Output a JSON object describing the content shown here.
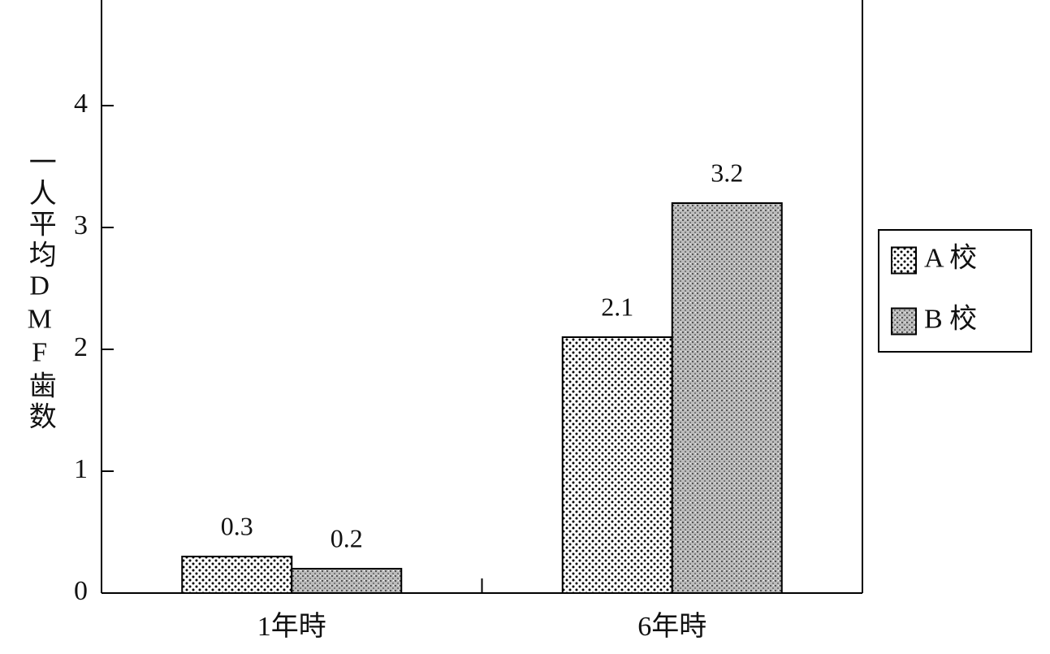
{
  "chart_data": {
    "type": "bar",
    "y_label": "一人平均DMF歯数",
    "categories": [
      "1年時",
      "6年時"
    ],
    "series": [
      {
        "name": "A 校",
        "color": "#000000",
        "values": [
          0.3,
          2.1
        ]
      },
      {
        "name": "B 校",
        "color": "#777777",
        "values": [
          0.2,
          3.2
        ]
      }
    ],
    "ylim": [
      0,
      5
    ],
    "yticks": [
      0,
      1,
      2,
      3,
      4
    ],
    "grid": false,
    "legend": "right"
  }
}
